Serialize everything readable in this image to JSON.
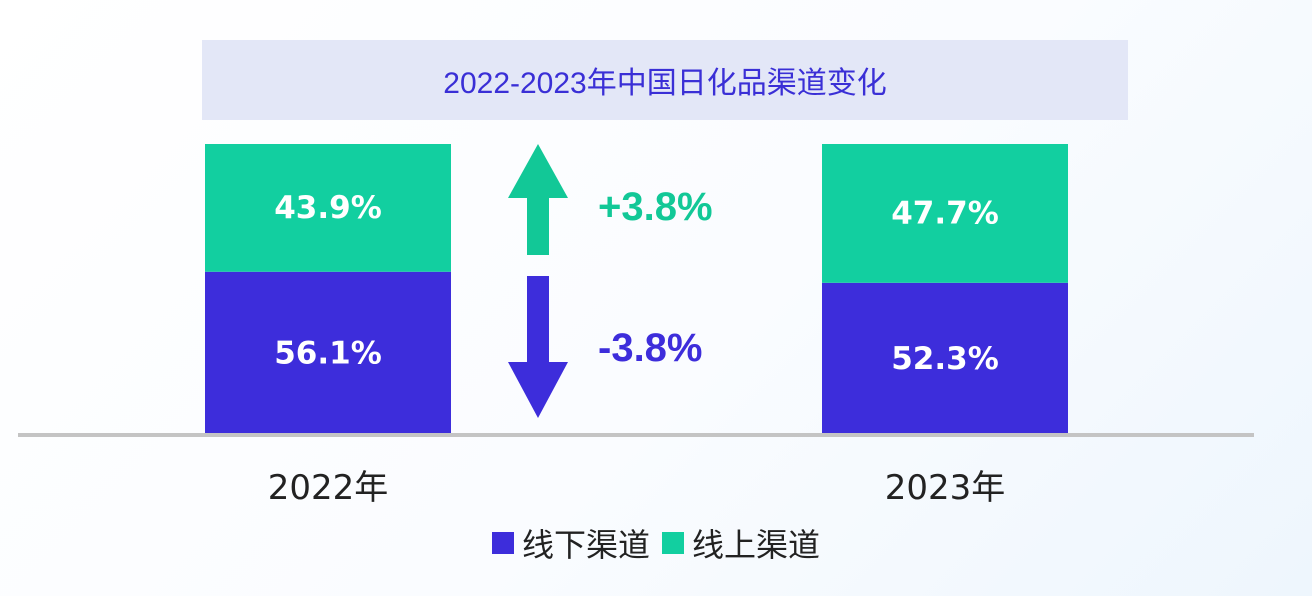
{
  "chart_data": {
    "type": "bar",
    "stacked": true,
    "normalized": true,
    "title": "2022-2023年中国日化品渠道变化",
    "categories": [
      "2022年",
      "2023年"
    ],
    "series": [
      {
        "name": "线下渠道",
        "values": [
          56.1,
          52.3
        ],
        "labels": [
          "56.1%",
          "52.3%"
        ],
        "color": "#3d2ddb"
      },
      {
        "name": "线上渠道",
        "values": [
          43.9,
          47.7
        ],
        "labels": [
          "43.9%",
          "47.7%"
        ],
        "color": "#12cfa0"
      }
    ],
    "ylim": [
      0,
      100
    ],
    "annotations": [
      {
        "text": "+3.8%",
        "direction": "up",
        "series": "线上渠道",
        "color": "#12c897"
      },
      {
        "text": "-3.8%",
        "direction": "down",
        "series": "线下渠道",
        "color": "#3d2ddb"
      }
    ],
    "legend": {
      "position": "bottom",
      "items": [
        "线下渠道",
        "线上渠道"
      ]
    }
  }
}
